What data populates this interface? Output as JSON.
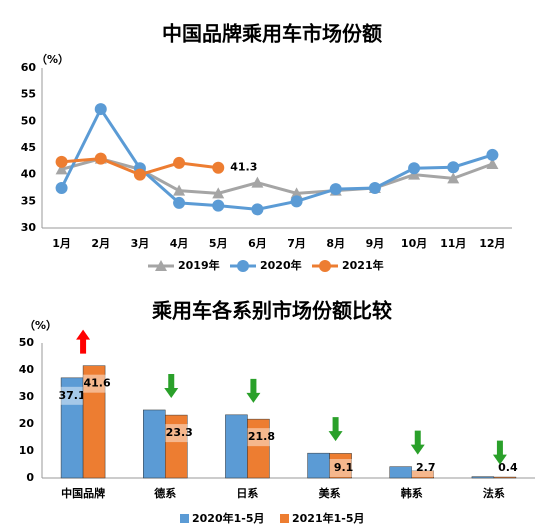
{
  "chart_data": [
    {
      "type": "line",
      "title": "中国品牌乘用车市场份额",
      "y_label": "（%）",
      "categories": [
        "1月",
        "2月",
        "3月",
        "4月",
        "5月",
        "6月",
        "7月",
        "8月",
        "9月",
        "10月",
        "11月",
        "12月"
      ],
      "series": [
        {
          "name": "2019年",
          "color": "#a5a5a5",
          "marker": "triangle",
          "values": [
            41,
            43,
            41,
            37,
            36.5,
            38.5,
            36.5,
            37,
            37.5,
            40,
            39.3,
            42
          ]
        },
        {
          "name": "2020年",
          "color": "#5b9bd5",
          "marker": "circle",
          "values": [
            37.5,
            52.3,
            41.2,
            34.7,
            34.2,
            33.5,
            35,
            37.3,
            37.5,
            41.2,
            41.4,
            43.7
          ]
        },
        {
          "name": "2021年",
          "color": "#ed7d31",
          "marker": "circle",
          "values": [
            42.4,
            43,
            40,
            42.2,
            41.3,
            null,
            null,
            null,
            null,
            null,
            null,
            null
          ]
        }
      ],
      "ylim": [
        30,
        60
      ],
      "yticks": [
        30,
        35,
        40,
        45,
        50,
        55,
        60
      ],
      "legend": "bottom"
    },
    {
      "type": "bar",
      "title": "乘用车各系别市场份额比较",
      "y_label": "（%）",
      "categories": [
        "中国品牌",
        "德系",
        "日系",
        "美系",
        "韩系",
        "法系"
      ],
      "series": [
        {
          "name": "2020年1-5月",
          "color": "#5b9bd5",
          "values": [
            37.1,
            25.2,
            23.4,
            9.2,
            4.2,
            0.5
          ]
        },
        {
          "name": "2021年1-5月",
          "color": "#ed7d31",
          "values": [
            41.6,
            23.3,
            21.8,
            9.1,
            2.7,
            0.4
          ]
        }
      ],
      "ylim": [
        0,
        50
      ],
      "yticks": [
        0,
        10,
        20,
        30,
        40,
        50
      ],
      "legend": "bottom"
    }
  ]
}
